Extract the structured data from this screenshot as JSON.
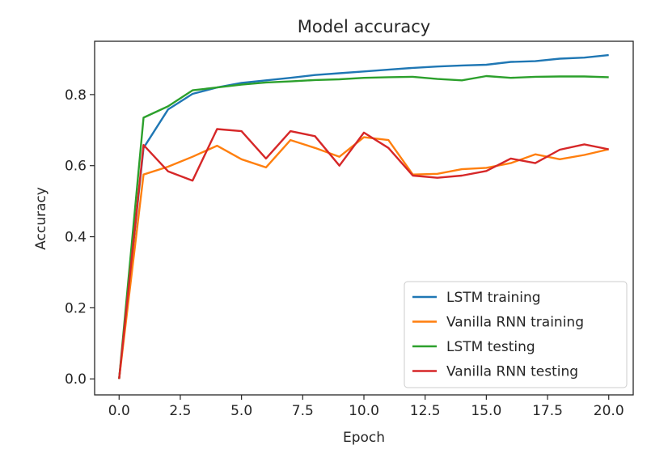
{
  "chart_data": {
    "type": "line",
    "title": "Model accuracy",
    "xlabel": "Epoch",
    "ylabel": "Accuracy",
    "xlim": [
      -1,
      21
    ],
    "ylim": [
      -0.045,
      0.95
    ],
    "xticks": [
      0.0,
      2.5,
      5.0,
      7.5,
      10.0,
      12.5,
      15.0,
      17.5,
      20.0
    ],
    "xtick_labels": [
      "0.0",
      "2.5",
      "5.0",
      "7.5",
      "10.0",
      "12.5",
      "15.0",
      "17.5",
      "20.0"
    ],
    "yticks": [
      0.0,
      0.2,
      0.4,
      0.6,
      0.8
    ],
    "ytick_labels": [
      "0.0",
      "0.2",
      "0.4",
      "0.6",
      "0.8"
    ],
    "grid": false,
    "legend_position": "lower-right",
    "x": [
      0,
      1,
      2,
      3,
      4,
      5,
      6,
      7,
      8,
      9,
      10,
      11,
      12,
      13,
      14,
      15,
      16,
      17,
      18,
      19,
      20
    ],
    "series": [
      {
        "name": "LSTM training",
        "color": "#1f77b4",
        "values": [
          0.0,
          0.65,
          0.758,
          0.802,
          0.82,
          0.833,
          0.84,
          0.847,
          0.855,
          0.86,
          0.865,
          0.87,
          0.875,
          0.879,
          0.882,
          0.884,
          0.892,
          0.894,
          0.901,
          0.904,
          0.911
        ]
      },
      {
        "name": "Vanilla RNN training",
        "color": "#ff7f0e",
        "values": [
          0.0,
          0.575,
          0.597,
          0.625,
          0.656,
          0.618,
          0.595,
          0.672,
          0.65,
          0.625,
          0.68,
          0.672,
          0.575,
          0.577,
          0.59,
          0.594,
          0.607,
          0.632,
          0.618,
          0.63,
          0.646
        ]
      },
      {
        "name": "LSTM testing",
        "color": "#2ca02c",
        "values": [
          0.0,
          0.735,
          0.767,
          0.812,
          0.82,
          0.828,
          0.834,
          0.837,
          0.841,
          0.843,
          0.847,
          0.849,
          0.85,
          0.844,
          0.84,
          0.852,
          0.847,
          0.85,
          0.851,
          0.851,
          0.849
        ]
      },
      {
        "name": "Vanilla RNN testing",
        "color": "#d62728",
        "values": [
          0.0,
          0.658,
          0.584,
          0.558,
          0.703,
          0.697,
          0.62,
          0.697,
          0.683,
          0.6,
          0.693,
          0.65,
          0.572,
          0.566,
          0.572,
          0.585,
          0.62,
          0.607,
          0.645,
          0.66,
          0.646
        ]
      }
    ]
  }
}
